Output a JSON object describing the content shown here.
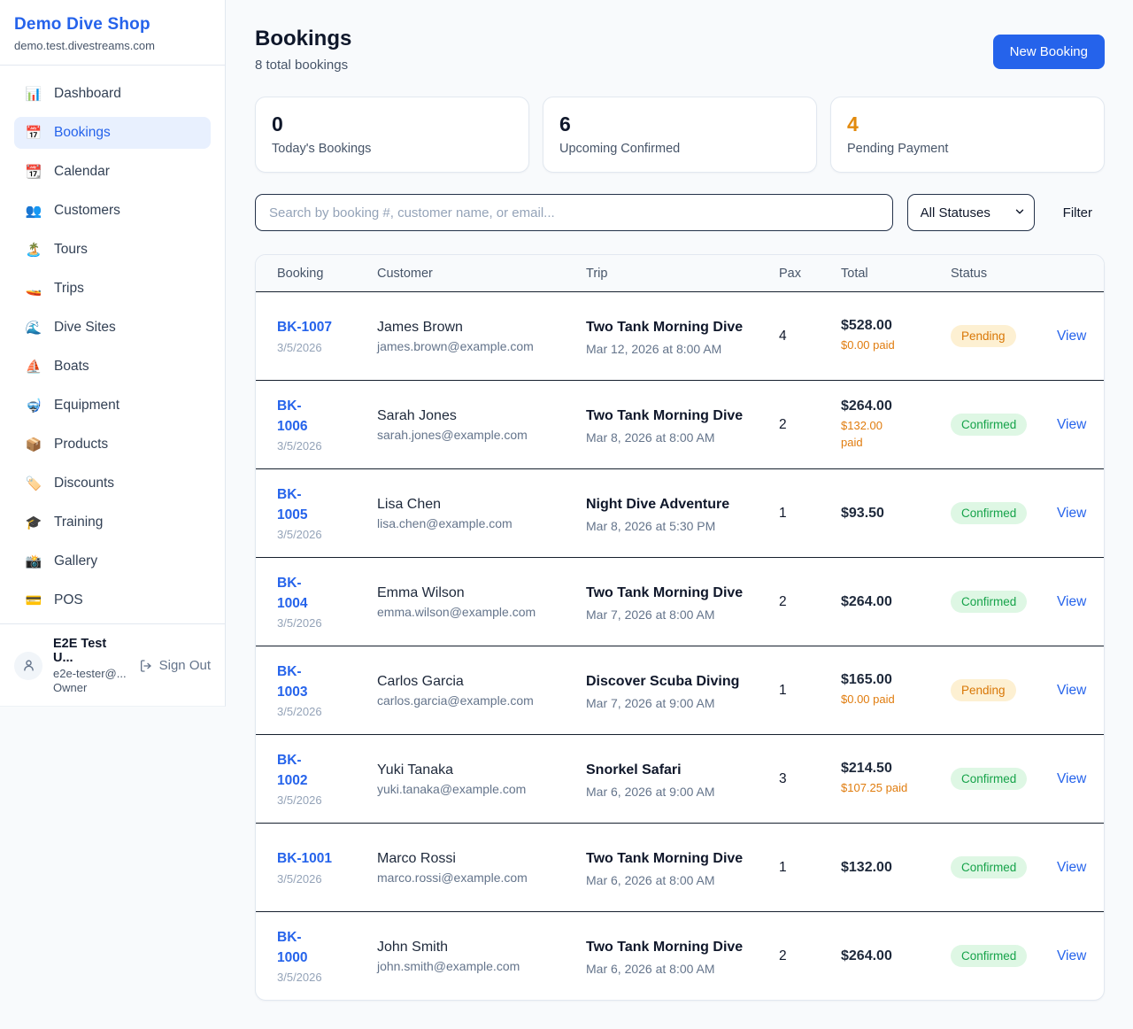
{
  "colors": {
    "accent": "#2563eb",
    "warning": "#d97706",
    "pending_bg": "#fdf0d2",
    "pending_text": "#d97706",
    "confirmed_bg": "#def7e4",
    "confirmed_text": "#16a34a",
    "dark": "#0f172a"
  },
  "brand": {
    "name": "Demo Dive Shop",
    "domain": "demo.test.divestreams.com"
  },
  "sidebar": {
    "items": [
      {
        "slug": "dashboard",
        "icon": "bar-chart-icon",
        "glyph": "📊",
        "label": "Dashboard",
        "active": false
      },
      {
        "slug": "bookings",
        "icon": "calendar-date-icon",
        "glyph": "📅",
        "label": "Bookings",
        "active": true
      },
      {
        "slug": "calendar",
        "icon": "calendar-icon",
        "glyph": "📆",
        "label": "Calendar",
        "active": false
      },
      {
        "slug": "customers",
        "icon": "people-icon",
        "glyph": "👥",
        "label": "Customers",
        "active": false
      },
      {
        "slug": "tours",
        "icon": "island-icon",
        "glyph": "🏝️",
        "label": "Tours",
        "active": false
      },
      {
        "slug": "trips",
        "icon": "speedboat-icon",
        "glyph": "🚤",
        "label": "Trips",
        "active": false
      },
      {
        "slug": "dive-sites",
        "icon": "wave-icon",
        "glyph": "🌊",
        "label": "Dive Sites",
        "active": false
      },
      {
        "slug": "boats",
        "icon": "sailboat-icon",
        "glyph": "⛵",
        "label": "Boats",
        "active": false
      },
      {
        "slug": "equipment",
        "icon": "diving-mask-icon",
        "glyph": "🤿",
        "label": "Equipment",
        "active": false
      },
      {
        "slug": "products",
        "icon": "package-icon",
        "glyph": "📦",
        "label": "Products",
        "active": false
      },
      {
        "slug": "discounts",
        "icon": "tag-icon",
        "glyph": "🏷️",
        "label": "Discounts",
        "active": false
      },
      {
        "slug": "training",
        "icon": "grad-cap-icon",
        "glyph": "🎓",
        "label": "Training",
        "active": false
      },
      {
        "slug": "gallery",
        "icon": "camera-icon",
        "glyph": "📸",
        "label": "Gallery",
        "active": false
      },
      {
        "slug": "pos",
        "icon": "credit-card-icon",
        "glyph": "💳",
        "label": "POS",
        "active": false
      }
    ],
    "user": {
      "name": "E2E Test U...",
      "email": "e2e-tester@...",
      "role": "Owner",
      "sign_out_label": "Sign Out"
    }
  },
  "header": {
    "title": "Bookings",
    "subtitle": "8 total bookings",
    "new_booking_label": "New Booking"
  },
  "stats": [
    {
      "value": "0",
      "label": "Today's Bookings",
      "color": "#0f172a"
    },
    {
      "value": "6",
      "label": "Upcoming Confirmed",
      "color": "#0f172a"
    },
    {
      "value": "4",
      "label": "Pending Payment",
      "color": "#e28a0d"
    }
  ],
  "filters": {
    "search_placeholder": "Search by booking #, customer name, or email...",
    "status_options": [
      "All Statuses"
    ],
    "status_selected": "All Statuses",
    "filter_label": "Filter"
  },
  "table": {
    "columns": [
      "Booking",
      "Customer",
      "Trip",
      "Pax",
      "Total",
      "Status"
    ],
    "view_label": "View",
    "rows": [
      {
        "id": "BK-1007",
        "id_two_line": false,
        "date": "3/5/2026",
        "customer": "James Brown",
        "email": "james.brown@example.com",
        "trip": "Two Tank Morning Dive",
        "trip_time": "Mar 12, 2026 at 8:00 AM",
        "pax": "4",
        "total": "$528.00",
        "paid": "$0.00 paid",
        "paid_two_line": false,
        "status": "Pending"
      },
      {
        "id": "BK-1006",
        "id_two_line": true,
        "date": "3/5/2026",
        "customer": "Sarah Jones",
        "email": "sarah.jones@example.com",
        "trip": "Two Tank Morning Dive",
        "trip_time": "Mar 8, 2026 at 8:00 AM",
        "pax": "2",
        "total": "$264.00",
        "paid": "$132.00 paid",
        "paid_two_line": true,
        "status": "Confirmed"
      },
      {
        "id": "BK-1005",
        "id_two_line": true,
        "date": "3/5/2026",
        "customer": "Lisa Chen",
        "email": "lisa.chen@example.com",
        "trip": "Night Dive Adventure",
        "trip_time": "Mar 8, 2026 at 5:30 PM",
        "pax": "1",
        "total": "$93.50",
        "paid": null,
        "paid_two_line": false,
        "status": "Confirmed"
      },
      {
        "id": "BK-1004",
        "id_two_line": true,
        "date": "3/5/2026",
        "customer": "Emma Wilson",
        "email": "emma.wilson@example.com",
        "trip": "Two Tank Morning Dive",
        "trip_time": "Mar 7, 2026 at 8:00 AM",
        "pax": "2",
        "total": "$264.00",
        "paid": null,
        "paid_two_line": false,
        "status": "Confirmed"
      },
      {
        "id": "BK-1003",
        "id_two_line": true,
        "date": "3/5/2026",
        "customer": "Carlos Garcia",
        "email": "carlos.garcia@example.com",
        "trip": "Discover Scuba Diving",
        "trip_time": "Mar 7, 2026 at 9:00 AM",
        "pax": "1",
        "total": "$165.00",
        "paid": "$0.00 paid",
        "paid_two_line": false,
        "status": "Pending"
      },
      {
        "id": "BK-1002",
        "id_two_line": true,
        "date": "3/5/2026",
        "customer": "Yuki Tanaka",
        "email": "yuki.tanaka@example.com",
        "trip": "Snorkel Safari",
        "trip_time": "Mar 6, 2026 at 9:00 AM",
        "pax": "3",
        "total": "$214.50",
        "paid": "$107.25 paid",
        "paid_two_line": false,
        "status": "Confirmed"
      },
      {
        "id": "BK-1001",
        "id_two_line": false,
        "date": "3/5/2026",
        "customer": "Marco Rossi",
        "email": "marco.rossi@example.com",
        "trip": "Two Tank Morning Dive",
        "trip_time": "Mar 6, 2026 at 8:00 AM",
        "pax": "1",
        "total": "$132.00",
        "paid": null,
        "paid_two_line": false,
        "status": "Confirmed"
      },
      {
        "id": "BK-1000",
        "id_two_line": true,
        "date": "3/5/2026",
        "customer": "John Smith",
        "email": "john.smith@example.com",
        "trip": "Two Tank Morning Dive",
        "trip_time": "Mar 6, 2026 at 8:00 AM",
        "pax": "2",
        "total": "$264.00",
        "paid": null,
        "paid_two_line": false,
        "status": "Confirmed"
      }
    ]
  }
}
